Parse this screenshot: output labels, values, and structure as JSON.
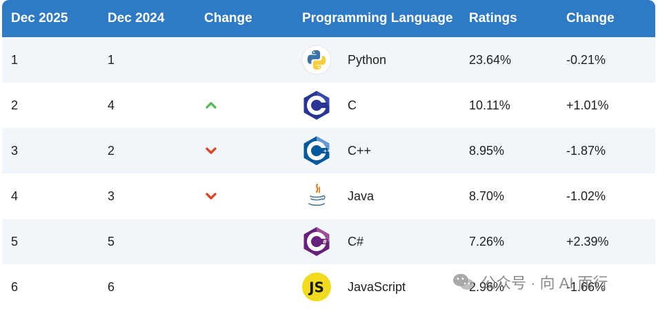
{
  "header": {
    "current": "Dec 2025",
    "previous": "Dec 2024",
    "change": "Change",
    "language": "Programming Language",
    "ratings": "Ratings",
    "rating_change": "Change"
  },
  "rows": [
    {
      "current": "1",
      "previous": "1",
      "trend": "none",
      "icon": "python-logo",
      "language": "Python",
      "rating": "23.64%",
      "change": "-0.21%"
    },
    {
      "current": "2",
      "previous": "4",
      "trend": "up",
      "icon": "c-logo",
      "language": "C",
      "rating": "10.11%",
      "change": "+1.01%"
    },
    {
      "current": "3",
      "previous": "2",
      "trend": "down",
      "icon": "cpp-logo",
      "language": "C++",
      "rating": "8.95%",
      "change": "-1.87%"
    },
    {
      "current": "4",
      "previous": "3",
      "trend": "down",
      "icon": "java-logo",
      "language": "Java",
      "rating": "8.70%",
      "change": "-1.02%"
    },
    {
      "current": "5",
      "previous": "5",
      "trend": "none",
      "icon": "csharp-logo",
      "language": "C#",
      "rating": "7.26%",
      "change": "+2.39%"
    },
    {
      "current": "6",
      "previous": "6",
      "trend": "none",
      "icon": "javascript-logo",
      "language": "JavaScript",
      "rating": "2.96%",
      "change": "-1.66%"
    }
  ],
  "colors": {
    "header_bg": "#2f7ac5",
    "row_alt_bg": "#f1f6fb",
    "trend_up": "#5cb85c",
    "trend_down": "#d9472b"
  },
  "watermark": {
    "text": "公众号 · 向 AI 而行"
  }
}
